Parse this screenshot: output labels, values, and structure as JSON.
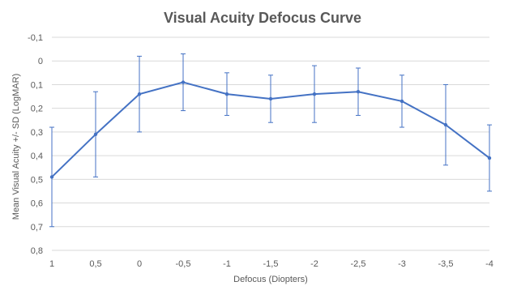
{
  "chart_data": {
    "type": "line",
    "title": "Visual Acuity Defocus Curve",
    "xlabel": "Defocus (Diopters)",
    "ylabel": "Mean Visual Acuity  +/- SD (LogMAR)",
    "categories": [
      "1",
      "0,5",
      "0",
      "-0,5",
      "-1",
      "-1,5",
      "-2",
      "-2,5",
      "-3",
      "-3,5",
      "-4"
    ],
    "y_ticks": [
      "-0,1",
      "0",
      "0,1",
      "0,2",
      "0,3",
      "0,4",
      "0,5",
      "0,6",
      "0,7",
      "0,8"
    ],
    "ylim": [
      -0.1,
      0.8
    ],
    "y_reversed": true,
    "grid": true,
    "series": [
      {
        "values": [
          0.49,
          0.31,
          0.14,
          0.09,
          0.14,
          0.16,
          0.14,
          0.13,
          0.17,
          0.27,
          0.41
        ],
        "sd": [
          0.21,
          0.18,
          0.16,
          0.12,
          0.09,
          0.1,
          0.12,
          0.1,
          0.11,
          0.17,
          0.14
        ],
        "color": "#4472c4"
      }
    ]
  }
}
